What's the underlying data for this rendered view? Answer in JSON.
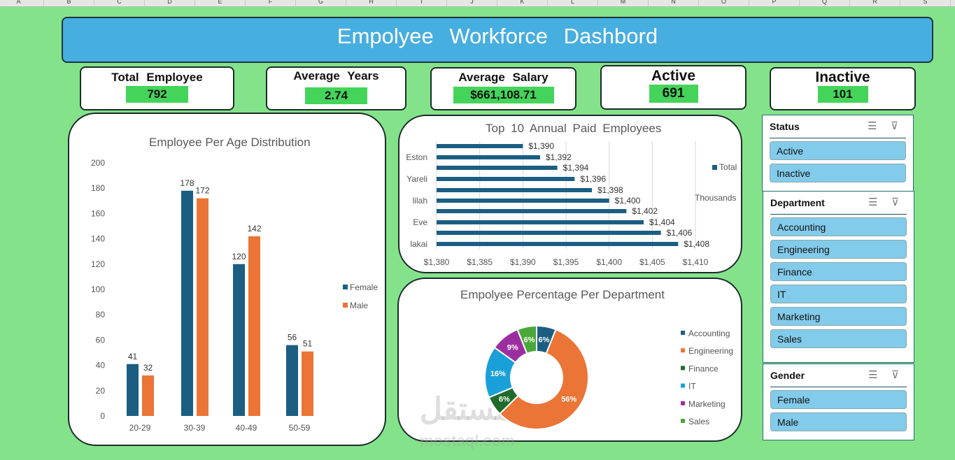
{
  "columns": [
    "A",
    "B",
    "C",
    "D",
    "E",
    "F",
    "G",
    "H",
    "I",
    "J",
    "K",
    "L",
    "M",
    "N",
    "O",
    "P",
    "Q",
    "R",
    "S"
  ],
  "title": "Empolyee   Workforce   Dashbord",
  "kpis": [
    {
      "label": "Total  Employee",
      "value": "792"
    },
    {
      "label": "Average  Years",
      "value": "2.74"
    },
    {
      "label": "Average  Salary",
      "value": "$661,108.71"
    },
    {
      "label": "Active",
      "value": "691"
    },
    {
      "label": "Inactive",
      "value": "101"
    }
  ],
  "colors": {
    "female": "#1b5e82",
    "male": "#ea7536",
    "bar": "#1b5e82",
    "background": "#84e38a",
    "banner": "#47aee0"
  },
  "chart_data": [
    {
      "type": "bar",
      "title": "Employee Per Age Distribution",
      "categories": [
        "20-29",
        "30-39",
        "40-49",
        "50-59"
      ],
      "series": [
        {
          "name": "Female",
          "values": [
            41,
            178,
            120,
            56
          ]
        },
        {
          "name": "Male",
          "values": [
            32,
            172,
            142,
            51
          ]
        }
      ],
      "ylim": [
        0,
        200
      ],
      "yticks": [
        "0",
        "20",
        "40",
        "60",
        "80",
        "100",
        "120",
        "140",
        "160",
        "180",
        "200"
      ],
      "legend": "right",
      "grid": false
    },
    {
      "type": "bar",
      "orientation": "horizontal",
      "title": "Top  10  Annual   Paid Employees",
      "categories": [
        "",
        "Eston",
        "",
        "Yareli",
        "",
        "lilah",
        "",
        "Eve",
        "",
        "lakai"
      ],
      "values": [
        1390,
        1392,
        1394,
        1396,
        1398,
        1400,
        1402,
        1404,
        1406,
        1408
      ],
      "data_labels": [
        "$1,390",
        "$1,392",
        "$1,394",
        "$1,396",
        "$1,398",
        "$1,400",
        "$1,402",
        "$1,404",
        "$1,406",
        "$1,408"
      ],
      "xlim": [
        1380,
        1410
      ],
      "xticks": [
        "$1,380",
        "$1,385",
        "$1,390",
        "$1,395",
        "$1,400",
        "$1,405",
        "$1,410"
      ],
      "series_name": "Total",
      "unit_label": "Thousands",
      "legend": "right",
      "grid": true
    },
    {
      "type": "pie",
      "donut": true,
      "title": "Empolyee Percentage Per Department",
      "categories": [
        "Accounting",
        "Engineering",
        "Finance",
        "IT",
        "Marketing",
        "Sales"
      ],
      "values": [
        6,
        56,
        6,
        16,
        9,
        6
      ],
      "labels": [
        "6%",
        "56%",
        "6%",
        "16%",
        "9%",
        "6%"
      ],
      "colors": [
        "#1b5e82",
        "#ea7536",
        "#1e6b2c",
        "#1aa0d8",
        "#9c2fa0",
        "#4aa83a"
      ],
      "legend": "right"
    }
  ],
  "slicers": [
    {
      "title": "Status",
      "items": [
        "Active",
        "Inactive"
      ]
    },
    {
      "title": "Department",
      "items": [
        "Accounting",
        "Engineering",
        "Finance",
        "IT",
        "Marketing",
        "Sales"
      ]
    },
    {
      "title": "Gender",
      "items": [
        "Female",
        "Male"
      ]
    }
  ],
  "watermark": {
    "arabic": "مستقل",
    "latin": "mostaql.com"
  }
}
